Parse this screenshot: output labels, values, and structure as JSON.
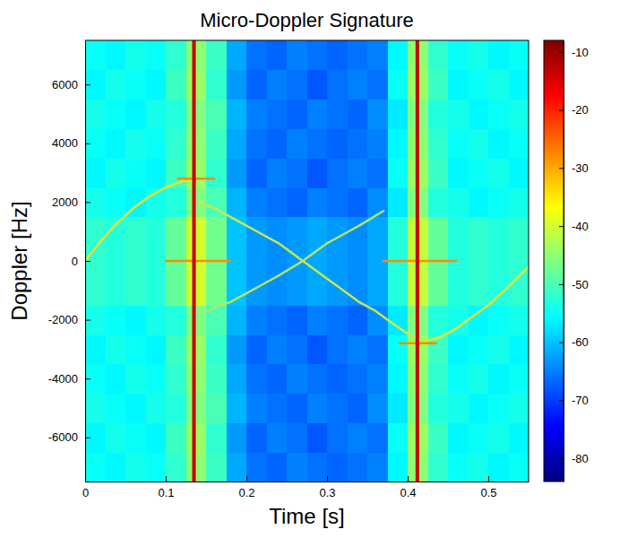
{
  "chart_data": {
    "type": "heatmap",
    "title": "Micro-Doppler Signature",
    "x_label": "Time [s]",
    "y_label": "Doppler [Hz]",
    "xlim": [
      0,
      0.55
    ],
    "ylim": [
      -7500,
      7500
    ],
    "xticks": [
      0,
      0.1,
      0.2,
      0.3,
      0.4,
      0.5
    ],
    "yticks": [
      -6000,
      -4000,
      -2000,
      0,
      2000,
      4000,
      6000
    ],
    "clim": [
      -84,
      -8
    ],
    "cticks": [
      -80,
      -70,
      -60,
      -50,
      -40,
      -30,
      -20,
      -10
    ],
    "x": [
      0.0125,
      0.0375,
      0.0625,
      0.0875,
      0.1125,
      0.1375,
      0.1625,
      0.1875,
      0.2125,
      0.2375,
      0.2625,
      0.2875,
      0.3125,
      0.3375,
      0.3625,
      0.3875,
      0.4125,
      0.4375,
      0.4625,
      0.4875,
      0.5125,
      0.5375
    ],
    "y": [
      -7000,
      -6000,
      -5000,
      -4000,
      -3000,
      -2000,
      -1000,
      0,
      1000,
      2000,
      3000,
      4000,
      5000,
      6000,
      7000
    ],
    "values": [
      [
        -55,
        -56,
        -54,
        -55,
        -52,
        -45,
        -51,
        -62,
        -66,
        -67,
        -65,
        -66,
        -67,
        -66,
        -65,
        -56,
        -45,
        -52,
        -55,
        -54,
        -56,
        -55
      ],
      [
        -56,
        -54,
        -55,
        -56,
        -51,
        -44,
        -52,
        -63,
        -67,
        -65,
        -66,
        -68,
        -66,
        -65,
        -66,
        -55,
        -44,
        -51,
        -56,
        -55,
        -54,
        -56
      ],
      [
        -54,
        -55,
        -56,
        -54,
        -53,
        -46,
        -50,
        -61,
        -65,
        -66,
        -67,
        -65,
        -66,
        -67,
        -64,
        -57,
        -46,
        -53,
        -54,
        -56,
        -55,
        -54
      ],
      [
        -55,
        -56,
        -54,
        -55,
        -52,
        -45,
        -51,
        -62,
        -66,
        -67,
        -65,
        -66,
        -67,
        -66,
        -65,
        -56,
        -45,
        -52,
        -55,
        -54,
        -56,
        -55
      ],
      [
        -56,
        -54,
        -55,
        -56,
        -51,
        -44,
        -52,
        -63,
        -67,
        -65,
        -66,
        -68,
        -66,
        -65,
        -66,
        -55,
        -44,
        -51,
        -56,
        -55,
        -54,
        -56
      ],
      [
        -54,
        -55,
        -56,
        -54,
        -53,
        -46,
        -50,
        -61,
        -65,
        -66,
        -67,
        -65,
        -66,
        -67,
        -64,
        -57,
        -46,
        -53,
        -54,
        -56,
        -55,
        -54
      ],
      [
        -52,
        -53,
        -52,
        -53,
        -48,
        -40,
        -47,
        -60,
        -63,
        -64,
        -63,
        -62,
        -63,
        -64,
        -62,
        -53,
        -41,
        -48,
        -53,
        -52,
        -53,
        -52
      ],
      [
        -52,
        -53,
        -52,
        -53,
        -48,
        -40,
        -47,
        -60,
        -63,
        -64,
        -63,
        -62,
        -63,
        -64,
        -62,
        -53,
        -41,
        -48,
        -53,
        -52,
        -53,
        -52
      ],
      [
        -52,
        -53,
        -52,
        -53,
        -48,
        -40,
        -47,
        -60,
        -63,
        -64,
        -63,
        -62,
        -63,
        -64,
        -62,
        -53,
        -41,
        -48,
        -53,
        -52,
        -53,
        -52
      ],
      [
        -54,
        -55,
        -56,
        -54,
        -53,
        -46,
        -50,
        -61,
        -65,
        -66,
        -67,
        -65,
        -66,
        -67,
        -64,
        -57,
        -46,
        -53,
        -54,
        -56,
        -55,
        -54
      ],
      [
        -56,
        -54,
        -55,
        -56,
        -51,
        -44,
        -52,
        -63,
        -67,
        -65,
        -66,
        -68,
        -66,
        -65,
        -66,
        -55,
        -44,
        -51,
        -56,
        -55,
        -54,
        -56
      ],
      [
        -55,
        -56,
        -54,
        -55,
        -52,
        -45,
        -51,
        -62,
        -66,
        -67,
        -65,
        -66,
        -67,
        -66,
        -65,
        -56,
        -45,
        -52,
        -55,
        -54,
        -56,
        -55
      ],
      [
        -54,
        -55,
        -56,
        -54,
        -53,
        -46,
        -50,
        -61,
        -65,
        -66,
        -67,
        -65,
        -66,
        -67,
        -64,
        -57,
        -46,
        -53,
        -54,
        -56,
        -55,
        -54
      ],
      [
        -56,
        -54,
        -55,
        -56,
        -51,
        -44,
        -52,
        -63,
        -67,
        -65,
        -66,
        -68,
        -66,
        -65,
        -66,
        -55,
        -44,
        -51,
        -56,
        -55,
        -54,
        -56
      ],
      [
        -55,
        -56,
        -54,
        -55,
        -52,
        -45,
        -51,
        -62,
        -66,
        -67,
        -65,
        -66,
        -67,
        -66,
        -65,
        -56,
        -45,
        -52,
        -55,
        -54,
        -56,
        -55
      ]
    ],
    "series": [
      {
        "color": "#e6e632",
        "x": [
          0,
          0.02,
          0.04,
          0.06,
          0.08,
          0.1,
          0.12,
          0.135
        ],
        "values": [
          0,
          700,
          1300,
          1800,
          2200,
          2500,
          2700,
          2800
        ]
      },
      {
        "color": "#c8e650",
        "x": [
          0.14,
          0.16,
          0.18,
          0.2,
          0.22,
          0.24,
          0.27,
          0.3,
          0.32,
          0.34,
          0.36,
          0.38,
          0.412
        ],
        "values": [
          2000,
          1800,
          1500,
          1200,
          900,
          600,
          0,
          -600,
          -1000,
          -1400,
          -1700,
          -2100,
          -2700
        ]
      },
      {
        "color": "#b4e664",
        "x": [
          0.15,
          0.18,
          0.2,
          0.22,
          0.24,
          0.27,
          0.3,
          0.32,
          0.34,
          0.37
        ],
        "values": [
          -1700,
          -1400,
          -1100,
          -800,
          -500,
          0,
          600,
          900,
          1200,
          1700
        ]
      },
      {
        "color": "#e6e632",
        "x": [
          0.412,
          0.44,
          0.46,
          0.48,
          0.5,
          0.52,
          0.55
        ],
        "values": [
          -2800,
          -2600,
          -2300,
          -1900,
          -1500,
          -1000,
          -200
        ]
      },
      {
        "color": "#ff8c00",
        "x": [
          0.1,
          0.18
        ],
        "values": [
          0,
          0
        ]
      },
      {
        "color": "#ff8c00",
        "x": [
          0.37,
          0.46
        ],
        "values": [
          0,
          0
        ]
      },
      {
        "color": "#ff8c00",
        "x": [
          0.115,
          0.16
        ],
        "values": [
          2800,
          2800
        ]
      },
      {
        "color": "#ff8c00",
        "x": [
          0.39,
          0.435
        ],
        "values": [
          -2800,
          -2800
        ]
      },
      {
        "color": "#c80000",
        "x": [
          0.135,
          0.135
        ],
        "values": [
          -7500,
          7500
        ]
      },
      {
        "color": "#c80000",
        "x": [
          0.412,
          0.412
        ],
        "values": [
          -7500,
          7500
        ]
      }
    ]
  }
}
